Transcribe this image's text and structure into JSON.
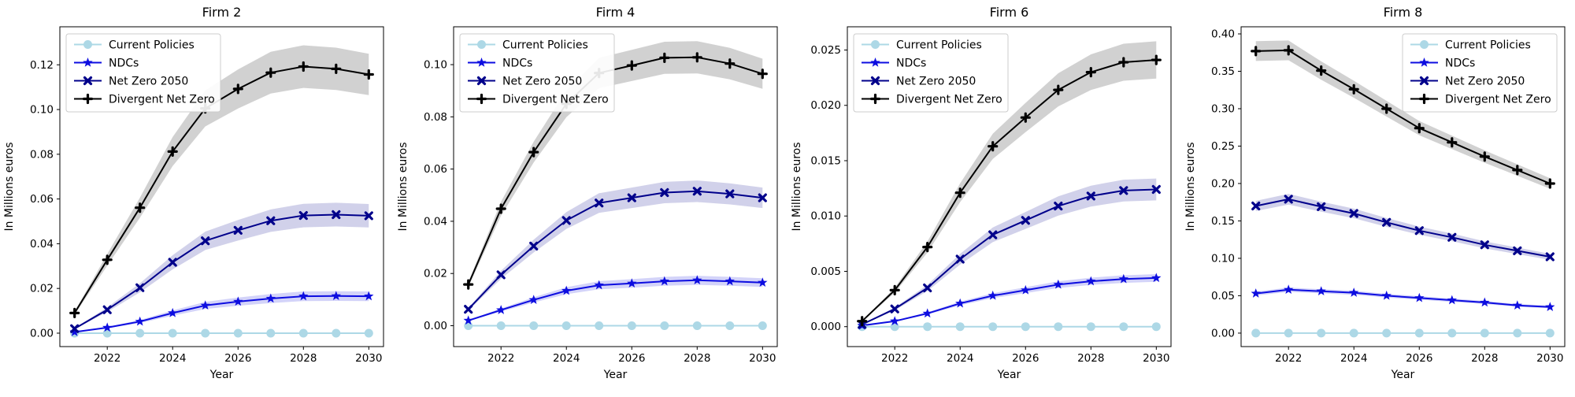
{
  "figure": {
    "background": "#ffffff",
    "xlabel": "Year",
    "ylabel": "In Millions euros",
    "text_color": "#000000",
    "spine_color": "#000000",
    "legend_border_color": "#cccccc",
    "legend_bg": "#ffffff",
    "band_opacity": 0.18,
    "series_colors": {
      "current_policies": "#add8e6",
      "ndcs": "#0d0de0",
      "net_zero_2050": "#00008b",
      "divergent_net_zero": "#000000"
    }
  },
  "chart_data": [
    {
      "type": "line",
      "title": "Firm 2",
      "xlabel": "Year",
      "ylabel": "In Millions euros",
      "x": [
        2021,
        2022,
        2023,
        2024,
        2025,
        2026,
        2027,
        2028,
        2029,
        2030
      ],
      "xticks": [
        2022,
        2024,
        2026,
        2028,
        2030
      ],
      "xlim": [
        2020.55,
        2030.45
      ],
      "ylim": [
        -0.006,
        0.137
      ],
      "yticks": [
        0.0,
        0.02,
        0.04,
        0.06,
        0.08,
        0.1,
        0.12
      ],
      "ytick_labels": [
        "0.00",
        "0.02",
        "0.04",
        "0.06",
        "0.08",
        "0.10",
        "0.12"
      ],
      "grid": false,
      "legend_position": "top-left",
      "series": [
        {
          "name": "Current Policies",
          "color": "#add8e6",
          "marker": "circle",
          "band_frac": 0,
          "values": [
            0,
            0,
            0,
            0,
            0,
            0,
            0,
            0,
            0,
            0
          ]
        },
        {
          "name": "NDCs",
          "color": "#0d0de0",
          "marker": "star",
          "band_frac": 0.13,
          "values": [
            0.0005,
            0.0025,
            0.0052,
            0.009,
            0.0124,
            0.0141,
            0.0155,
            0.0165,
            0.0166,
            0.0165
          ]
        },
        {
          "name": "Net Zero 2050",
          "color": "#00008b",
          "marker": "x",
          "band_frac": 0.1,
          "values": [
            0.002,
            0.0105,
            0.0203,
            0.0317,
            0.0413,
            0.046,
            0.0503,
            0.0526,
            0.053,
            0.0525
          ]
        },
        {
          "name": "Divergent Net Zero",
          "color": "#000000",
          "marker": "plus",
          "band_frac": 0.08,
          "values": [
            0.009,
            0.0328,
            0.0561,
            0.0812,
            0.1005,
            0.1092,
            0.1165,
            0.1192,
            0.1182,
            0.1157
          ]
        }
      ]
    },
    {
      "type": "line",
      "title": "Firm 4",
      "xlabel": "Year",
      "ylabel": "In Millions euros",
      "x": [
        2021,
        2022,
        2023,
        2024,
        2025,
        2026,
        2027,
        2028,
        2029,
        2030
      ],
      "xticks": [
        2022,
        2024,
        2026,
        2028,
        2030
      ],
      "xlim": [
        2020.55,
        2030.45
      ],
      "ylim": [
        -0.008,
        0.1145
      ],
      "yticks": [
        0.0,
        0.02,
        0.04,
        0.06,
        0.08,
        0.1
      ],
      "ytick_labels": [
        "0.00",
        "0.02",
        "0.04",
        "0.06",
        "0.08",
        "0.10"
      ],
      "grid": false,
      "legend_position": "top-left",
      "series": [
        {
          "name": "Current Policies",
          "color": "#add8e6",
          "marker": "circle",
          "band_frac": 0,
          "values": [
            0,
            0,
            0,
            0,
            0,
            0,
            0,
            0,
            0,
            0
          ]
        },
        {
          "name": "NDCs",
          "color": "#0d0de0",
          "marker": "star",
          "band_frac": 0.1,
          "values": [
            0.002,
            0.006,
            0.0099,
            0.0134,
            0.0155,
            0.0162,
            0.017,
            0.0174,
            0.017,
            0.0165
          ]
        },
        {
          "name": "Net Zero 2050",
          "color": "#00008b",
          "marker": "x",
          "band_frac": 0.08,
          "values": [
            0.0063,
            0.0195,
            0.0305,
            0.0403,
            0.047,
            0.049,
            0.051,
            0.0515,
            0.0505,
            0.049
          ]
        },
        {
          "name": "Divergent Net Zero",
          "color": "#000000",
          "marker": "plus",
          "band_frac": 0.06,
          "values": [
            0.0158,
            0.0448,
            0.0665,
            0.085,
            0.0968,
            0.0997,
            0.1026,
            0.1028,
            0.1004,
            0.0965
          ]
        }
      ]
    },
    {
      "type": "line",
      "title": "Firm 6",
      "xlabel": "Year",
      "ylabel": "In Millions euros",
      "x": [
        2021,
        2022,
        2023,
        2024,
        2025,
        2026,
        2027,
        2028,
        2029,
        2030
      ],
      "xticks": [
        2022,
        2024,
        2026,
        2028,
        2030
      ],
      "xlim": [
        2020.55,
        2030.45
      ],
      "ylim": [
        -0.0018,
        0.0271
      ],
      "yticks": [
        0.0,
        0.005,
        0.01,
        0.015,
        0.02,
        0.025
      ],
      "ytick_labels": [
        "0.000",
        "0.005",
        "0.010",
        "0.015",
        "0.020",
        "0.025"
      ],
      "grid": false,
      "legend_position": "top-left",
      "series": [
        {
          "name": "Current Policies",
          "color": "#add8e6",
          "marker": "circle",
          "band_frac": 0,
          "values": [
            0,
            0,
            0,
            0,
            0,
            0,
            0,
            0,
            0,
            0
          ]
        },
        {
          "name": "NDCs",
          "color": "#0d0de0",
          "marker": "star",
          "band_frac": 0.08,
          "values": [
            0.0001,
            0.0005,
            0.0012,
            0.0021,
            0.0028,
            0.0033,
            0.0038,
            0.0041,
            0.0043,
            0.0044
          ]
        },
        {
          "name": "Net Zero 2050",
          "color": "#00008b",
          "marker": "x",
          "band_frac": 0.08,
          "values": [
            0.0002,
            0.0016,
            0.0035,
            0.0061,
            0.0083,
            0.0096,
            0.0109,
            0.0118,
            0.0123,
            0.0124
          ]
        },
        {
          "name": "Divergent Net Zero",
          "color": "#000000",
          "marker": "plus",
          "band_frac": 0.07,
          "values": [
            0.0005,
            0.0033,
            0.0072,
            0.0121,
            0.0163,
            0.0189,
            0.0214,
            0.023,
            0.0239,
            0.0241
          ]
        }
      ]
    },
    {
      "type": "line",
      "title": "Firm 8",
      "xlabel": "Year",
      "ylabel": "In Millions euros",
      "x": [
        2021,
        2022,
        2023,
        2024,
        2025,
        2026,
        2027,
        2028,
        2029,
        2030
      ],
      "xticks": [
        2022,
        2024,
        2026,
        2028,
        2030
      ],
      "xlim": [
        2020.55,
        2030.45
      ],
      "ylim": [
        -0.018,
        0.4095
      ],
      "yticks": [
        0.0,
        0.05,
        0.1,
        0.15,
        0.2,
        0.25,
        0.3,
        0.35,
        0.4
      ],
      "ytick_labels": [
        "0.00",
        "0.05",
        "0.10",
        "0.15",
        "0.20",
        "0.25",
        "0.30",
        "0.35",
        "0.40"
      ],
      "grid": false,
      "legend_position": "top-right",
      "series": [
        {
          "name": "Current Policies",
          "color": "#add8e6",
          "marker": "circle",
          "band_frac": 0,
          "values": [
            0,
            0,
            0,
            0,
            0,
            0,
            0,
            0,
            0,
            0
          ]
        },
        {
          "name": "NDCs",
          "color": "#0d0de0",
          "marker": "star",
          "band_frac": 0.05,
          "values": [
            0.053,
            0.058,
            0.056,
            0.054,
            0.05,
            0.047,
            0.044,
            0.041,
            0.037,
            0.035
          ]
        },
        {
          "name": "Net Zero 2050",
          "color": "#00008b",
          "marker": "x",
          "band_frac": 0.04,
          "values": [
            0.17,
            0.179,
            0.169,
            0.16,
            0.148,
            0.137,
            0.128,
            0.118,
            0.11,
            0.102
          ]
        },
        {
          "name": "Divergent Net Zero",
          "color": "#000000",
          "marker": "plus",
          "band_frac": 0.035,
          "values": [
            0.377,
            0.378,
            0.351,
            0.326,
            0.3,
            0.274,
            0.255,
            0.236,
            0.218,
            0.2
          ]
        }
      ]
    }
  ]
}
